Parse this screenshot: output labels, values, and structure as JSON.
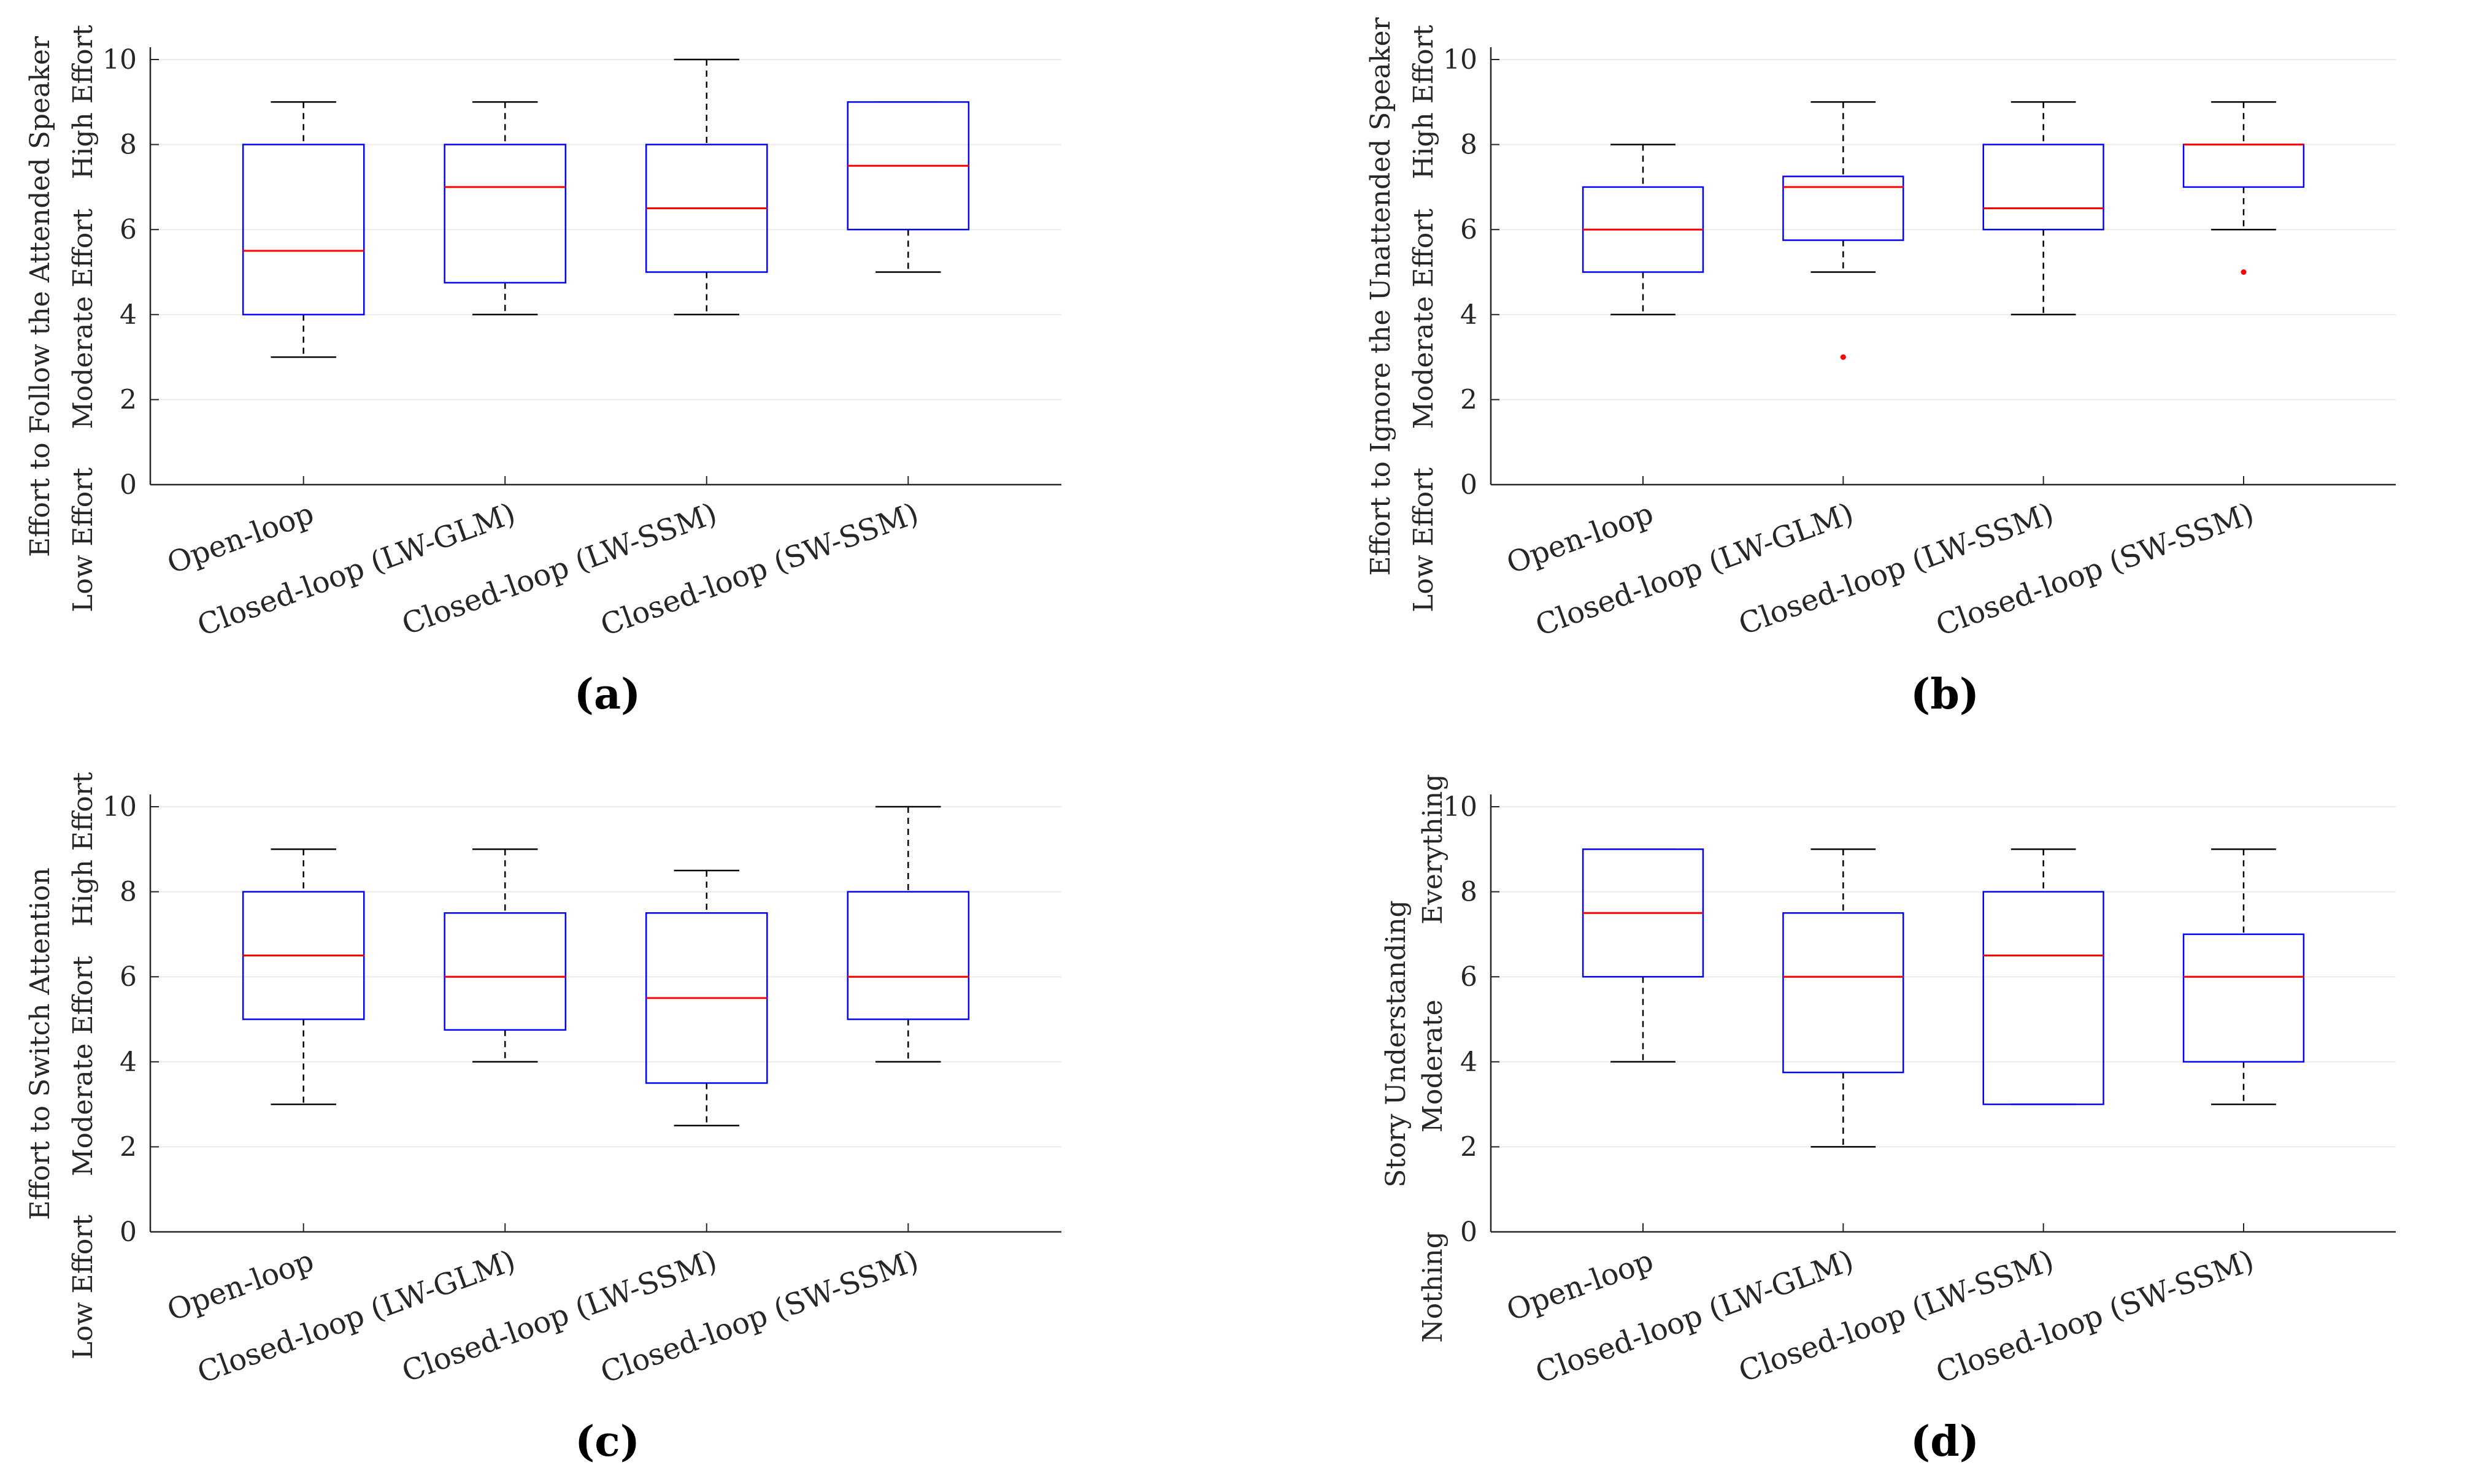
{
  "colors": {
    "box": "#0000ff",
    "median": "#ff0000",
    "whisker": "#000000",
    "outlier": "#ff0000",
    "grid": "#ebebeb",
    "axis": "#262626"
  },
  "chart_data": [
    {
      "type": "boxplot",
      "panel": "(a)",
      "caption": "(a)",
      "ylabel": "Effort to Follow the Attended Speaker",
      "y_side_labels": {
        "low": "Low Effort",
        "mid": "Moderate Effort",
        "high": "High Effort"
      },
      "ylim": [
        0,
        10
      ],
      "yticks": [
        0,
        2,
        4,
        6,
        8,
        10
      ],
      "categories": [
        "Open-loop",
        "Closed-loop (LW-GLM)",
        "Closed-loop (LW-SSM)",
        "Closed-loop (SW-SSM)"
      ],
      "boxes": [
        {
          "whisker_low": 3,
          "q1": 4,
          "median": 5.5,
          "q3": 8,
          "whisker_high": 9,
          "outliers": []
        },
        {
          "whisker_low": 4,
          "q1": 4.75,
          "median": 7,
          "q3": 8,
          "whisker_high": 9,
          "outliers": []
        },
        {
          "whisker_low": 4,
          "q1": 5,
          "median": 6.5,
          "q3": 8,
          "whisker_high": 10,
          "outliers": []
        },
        {
          "whisker_low": 5,
          "q1": 6,
          "median": 7.5,
          "q3": 9,
          "whisker_high": 9,
          "outliers": []
        }
      ]
    },
    {
      "type": "boxplot",
      "panel": "(b)",
      "caption": "(b)",
      "ylabel": "Effort to Ignore the Unattended Speaker",
      "y_side_labels": {
        "low": "Low Effort",
        "mid": "Moderate Effort",
        "high": "High Effort"
      },
      "ylim": [
        0,
        10
      ],
      "yticks": [
        0,
        2,
        4,
        6,
        8,
        10
      ],
      "categories": [
        "Open-loop",
        "Closed-loop (LW-GLM)",
        "Closed-loop (LW-SSM)",
        "Closed-loop (SW-SSM)"
      ],
      "boxes": [
        {
          "whisker_low": 4,
          "q1": 5,
          "median": 6,
          "q3": 7,
          "whisker_high": 8,
          "outliers": []
        },
        {
          "whisker_low": 5,
          "q1": 5.75,
          "median": 7,
          "q3": 7.25,
          "whisker_high": 9,
          "outliers": [
            3
          ]
        },
        {
          "whisker_low": 4,
          "q1": 6,
          "median": 6.5,
          "q3": 8,
          "whisker_high": 9,
          "outliers": []
        },
        {
          "whisker_low": 6,
          "q1": 7,
          "median": 8,
          "q3": 8,
          "whisker_high": 9,
          "outliers": [
            5
          ]
        }
      ]
    },
    {
      "type": "boxplot",
      "panel": "(c)",
      "caption": "(c)",
      "ylabel": "Effort to Switch Attention",
      "y_side_labels": {
        "low": "Low Effort",
        "mid": "Moderate Effort",
        "high": "High Effort"
      },
      "ylim": [
        0,
        10
      ],
      "yticks": [
        0,
        2,
        4,
        6,
        8,
        10
      ],
      "categories": [
        "Open-loop",
        "Closed-loop (LW-GLM)",
        "Closed-loop (LW-SSM)",
        "Closed-loop (SW-SSM)"
      ],
      "boxes": [
        {
          "whisker_low": 3,
          "q1": 5,
          "median": 6.5,
          "q3": 8,
          "whisker_high": 9,
          "outliers": []
        },
        {
          "whisker_low": 4,
          "q1": 4.75,
          "median": 6,
          "q3": 7.5,
          "whisker_high": 9,
          "outliers": []
        },
        {
          "whisker_low": 2.5,
          "q1": 3.5,
          "median": 5.5,
          "q3": 7.5,
          "whisker_high": 8.5,
          "outliers": []
        },
        {
          "whisker_low": 4,
          "q1": 5,
          "median": 6,
          "q3": 8,
          "whisker_high": 10,
          "outliers": []
        }
      ]
    },
    {
      "type": "boxplot",
      "panel": "(d)",
      "caption": "(d)",
      "ylabel": "Story Understanding",
      "y_side_labels": {
        "low": "Nothing",
        "mid": "Moderate",
        "high": "Everything"
      },
      "ylim": [
        0,
        10
      ],
      "yticks": [
        0,
        2,
        4,
        6,
        8,
        10
      ],
      "categories": [
        "Open-loop",
        "Closed-loop (LW-GLM)",
        "Closed-loop (LW-SSM)",
        "Closed-loop (SW-SSM)"
      ],
      "boxes": [
        {
          "whisker_low": 4,
          "q1": 6,
          "median": 7.5,
          "q3": 9,
          "whisker_high": 9,
          "outliers": []
        },
        {
          "whisker_low": 2,
          "q1": 3.75,
          "median": 6,
          "q3": 7.5,
          "whisker_high": 9,
          "outliers": []
        },
        {
          "whisker_low": 3,
          "q1": 3,
          "median": 6.5,
          "q3": 8,
          "whisker_high": 9,
          "outliers": []
        },
        {
          "whisker_low": 3,
          "q1": 4,
          "median": 6,
          "q3": 7,
          "whisker_high": 9,
          "outliers": []
        }
      ]
    }
  ]
}
